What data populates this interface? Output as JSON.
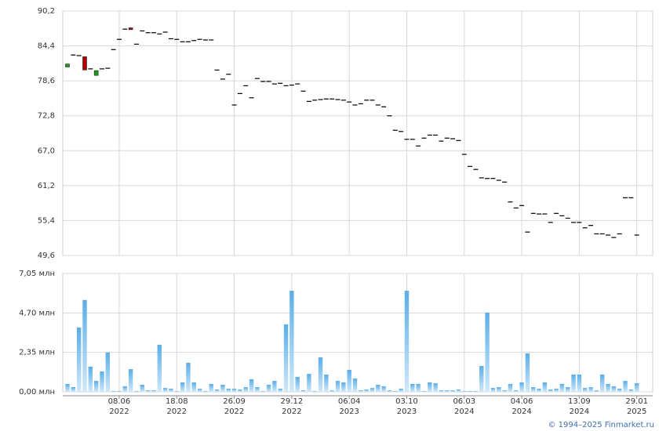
{
  "chart_data": [
    {
      "type": "candlestick",
      "up_color": "#1a9a1a",
      "down_color": "#b00000",
      "flat_color": "#000000",
      "open": [
        80.9,
        82.9,
        82.8,
        82.6,
        80.6,
        79.5,
        80.6,
        80.7,
        83.8,
        85.5,
        87.2,
        87.4,
        84.7,
        86.9,
        86.6,
        86.6,
        86.4,
        86.7,
        85.6,
        85.5,
        85.1,
        85.1,
        85.3,
        85.5,
        85.4,
        85.4,
        80.4,
        78.9,
        79.7,
        74.6,
        76.5,
        77.8,
        75.8,
        79.0,
        78.5,
        78.5,
        78.1,
        78.2,
        77.8,
        77.9,
        78.1,
        76.9,
        75.2,
        75.4,
        75.5,
        75.6,
        75.6,
        75.5,
        75.4,
        75.1,
        74.6,
        74.8,
        75.4,
        75.4,
        74.6,
        74.3,
        72.8,
        70.4,
        70.2,
        68.9,
        68.9,
        67.8,
        69.1,
        69.6,
        69.6,
        68.6,
        69.1,
        69.0,
        68.7,
        66.4,
        64.4,
        63.9,
        62.5,
        62.4,
        62.4,
        62.1,
        61.8,
        58.5,
        57.5,
        57.9,
        53.5,
        56.6,
        56.5,
        56.5,
        55.1,
        56.6,
        56.2,
        55.8,
        55.1,
        55.1,
        54.2,
        54.6,
        53.2,
        53.2,
        53.0,
        52.6,
        53.2,
        59.2,
        59.2,
        53.0
      ],
      "close": [
        81.4,
        82.9,
        82.8,
        80.4,
        80.6,
        80.3,
        80.6,
        80.7,
        83.8,
        85.5,
        87.2,
        87.1,
        84.7,
        86.9,
        86.6,
        86.6,
        86.4,
        86.7,
        85.6,
        85.5,
        85.1,
        85.1,
        85.3,
        85.5,
        85.4,
        85.4,
        80.4,
        78.9,
        79.7,
        74.6,
        76.5,
        77.8,
        75.8,
        79.0,
        78.5,
        78.5,
        78.1,
        78.2,
        77.8,
        77.9,
        78.1,
        76.9,
        75.2,
        75.4,
        75.5,
        75.6,
        75.6,
        75.5,
        75.4,
        75.1,
        74.6,
        74.8,
        75.4,
        75.4,
        74.6,
        74.3,
        72.8,
        70.4,
        70.2,
        68.9,
        68.9,
        67.8,
        69.1,
        69.6,
        69.6,
        68.6,
        69.1,
        69.0,
        68.7,
        66.4,
        64.4,
        63.9,
        62.5,
        62.4,
        62.4,
        62.1,
        61.8,
        58.5,
        57.5,
        57.9,
        53.5,
        56.6,
        56.5,
        56.5,
        55.1,
        56.6,
        56.2,
        55.8,
        55.1,
        55.1,
        54.2,
        54.6,
        53.2,
        53.2,
        53.0,
        52.6,
        53.2,
        59.2,
        59.2,
        53.0
      ],
      "ylim": [
        49.6,
        90.2
      ],
      "yticks": [
        {
          "value": 49.6,
          "label": "49,6"
        },
        {
          "value": 55.4,
          "label": "55,4"
        },
        {
          "value": 61.2,
          "label": "61,2"
        },
        {
          "value": 67.0,
          "label": "67,0"
        },
        {
          "value": 72.8,
          "label": "72,8"
        },
        {
          "value": 78.6,
          "label": "78,6"
        },
        {
          "value": 84.4,
          "label": "84,4"
        },
        {
          "value": 90.2,
          "label": "90,2"
        }
      ],
      "grid": true
    },
    {
      "type": "bar",
      "color": "#6ab8ee",
      "categories": [
        null,
        null,
        null,
        null,
        null,
        null,
        null,
        null,
        null,
        "08.06 2022",
        null,
        null,
        null,
        null,
        null,
        null,
        null,
        null,
        null,
        "18.08 2022",
        null,
        null,
        null,
        null,
        null,
        null,
        null,
        null,
        null,
        "26.09 2022",
        null,
        null,
        null,
        null,
        null,
        null,
        null,
        null,
        null,
        "29.12 2022",
        null,
        null,
        null,
        null,
        null,
        null,
        null,
        null,
        null,
        "06.04 2023",
        null,
        null,
        null,
        null,
        null,
        null,
        null,
        null,
        null,
        "03.10 2023",
        null,
        null,
        null,
        null,
        null,
        null,
        null,
        null,
        null,
        "06.03 2024",
        null,
        null,
        null,
        null,
        null,
        null,
        null,
        null,
        null,
        "04.06 2024",
        null,
        null,
        null,
        null,
        null,
        null,
        null,
        null,
        null,
        "13.09 2024",
        null,
        null,
        null,
        null,
        null,
        null,
        null,
        null,
        null,
        "29.01 2025"
      ],
      "values": [
        0.47,
        0.28,
        3.83,
        5.47,
        1.5,
        0.65,
        1.21,
        2.34,
        0.05,
        0.05,
        0.33,
        1.35,
        0.05,
        0.42,
        0.09,
        0.09,
        2.8,
        0.23,
        0.19,
        0.05,
        0.56,
        1.73,
        0.56,
        0.19,
        0.05,
        0.47,
        0.14,
        0.42,
        0.19,
        0.19,
        0.14,
        0.28,
        0.75,
        0.28,
        0.05,
        0.42,
        0.65,
        0.19,
        4.02,
        6.02,
        0.89,
        0.09,
        1.07,
        0.05,
        2.05,
        1.03,
        0.09,
        0.65,
        0.56,
        1.31,
        0.79,
        0.09,
        0.14,
        0.23,
        0.42,
        0.33,
        0.09,
        0.05,
        0.19,
        6.02,
        0.47,
        0.47,
        0.05,
        0.56,
        0.51,
        0.09,
        0.09,
        0.09,
        0.14,
        0.05,
        0.05,
        0.05,
        1.54,
        4.72,
        0.23,
        0.28,
        0.09,
        0.47,
        0.09,
        0.56,
        2.29,
        0.28,
        0.19,
        0.56,
        0.14,
        0.19,
        0.47,
        0.28,
        1.03,
        1.03,
        0.23,
        0.28,
        0.09,
        1.03,
        0.47,
        0.33,
        0.19,
        0.65,
        0.14,
        0.51
      ],
      "ylim": [
        0,
        7.05
      ],
      "yticks": [
        {
          "value": 0,
          "label": "0,00 млн"
        },
        {
          "value": 2.35,
          "label": "2,35 млн"
        },
        {
          "value": 4.7,
          "label": "4,70 млн"
        },
        {
          "value": 7.05,
          "label": "7,05 млн"
        }
      ],
      "grid": true
    }
  ],
  "credit": "© 1994–2025 Finmarket.ru"
}
